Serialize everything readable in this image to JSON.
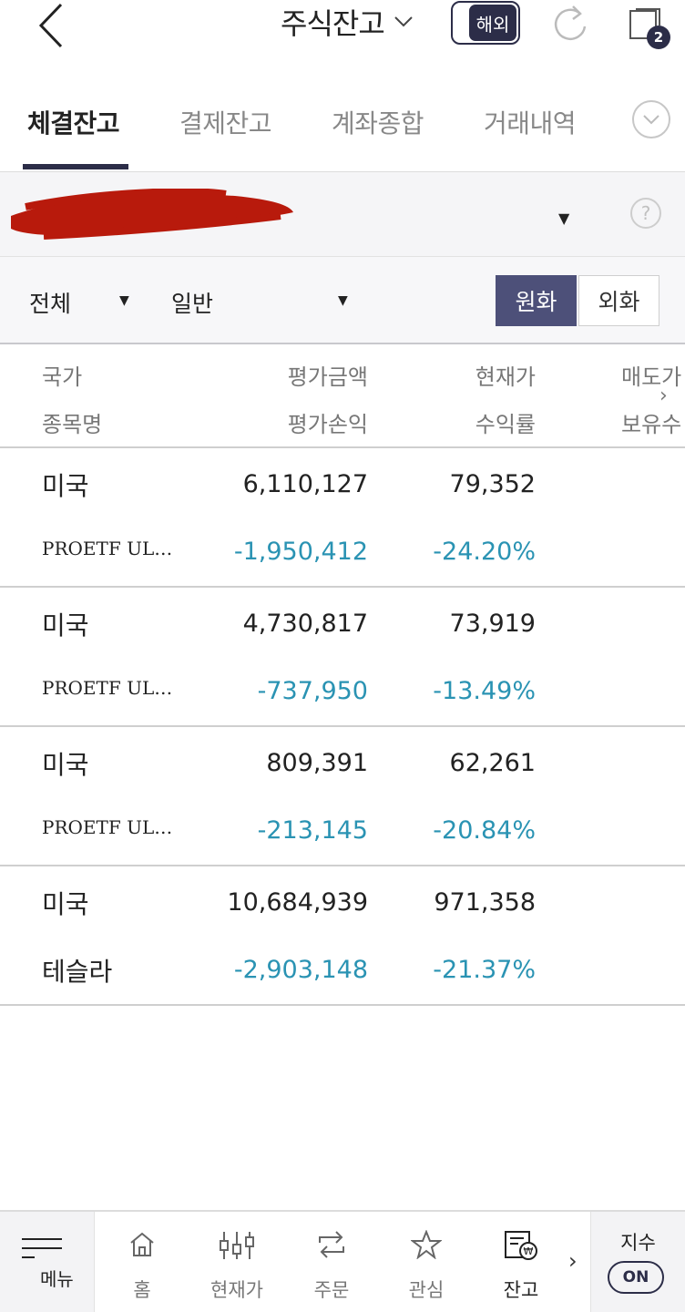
{
  "header": {
    "title": "주식잔고",
    "overseas_label": "해외",
    "window_count": "2"
  },
  "tabs": [
    {
      "label": "체결잔고",
      "active": true
    },
    {
      "label": "결제잔고",
      "active": false
    },
    {
      "label": "계좌종합",
      "active": false
    },
    {
      "label": "거래내역",
      "active": false
    }
  ],
  "account": {
    "number_visible": "6",
    "help": "?"
  },
  "filters": {
    "market": "전체",
    "type": "일반",
    "currency_won": "원화",
    "currency_fx": "외화"
  },
  "table": {
    "headers": {
      "country": "국가",
      "name": "종목명",
      "eval_amount": "평가금액",
      "eval_pl": "평가손익",
      "price": "현재가",
      "return_rate": "수익률",
      "sell_avail": "매도가",
      "holding": "보유수"
    },
    "rows": [
      {
        "country": "미국",
        "name": "PROETF UL…",
        "eval_amount": "6,110,127",
        "eval_pl": "-1,950,412",
        "price": "79,352",
        "return_rate": "-24.20%"
      },
      {
        "country": "미국",
        "name": "PROETF UL…",
        "eval_amount": "4,730,817",
        "eval_pl": "-737,950",
        "price": "73,919",
        "return_rate": "-13.49%"
      },
      {
        "country": "미국",
        "name": "PROETF UL…",
        "eval_amount": "809,391",
        "eval_pl": "-213,145",
        "price": "62,261",
        "return_rate": "-20.84%"
      },
      {
        "country": "미국",
        "name": "테슬라",
        "eval_amount": "10,684,939",
        "eval_pl": "-2,903,148",
        "price": "971,358",
        "return_rate": "-21.37%"
      }
    ]
  },
  "bottom_nav": {
    "menu": "메뉴",
    "items": [
      {
        "label": "홈",
        "icon": "home-icon"
      },
      {
        "label": "현재가",
        "icon": "candlestick-icon"
      },
      {
        "label": "주문",
        "icon": "swap-icon"
      },
      {
        "label": "관심",
        "icon": "star-icon"
      },
      {
        "label": "잔고",
        "icon": "balance-won-icon",
        "active": true
      }
    ],
    "index_label": "지수",
    "index_toggle": "ON"
  },
  "colors": {
    "navy": "#2c2d48",
    "won_button": "#4d5079",
    "negative": "#2a93b3"
  }
}
